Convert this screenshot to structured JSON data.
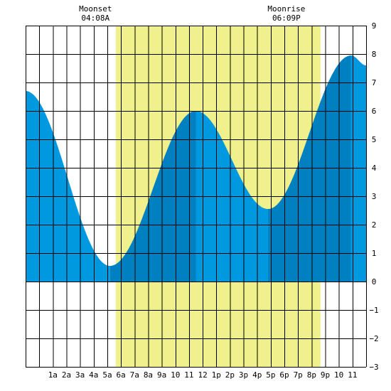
{
  "chart_data": {
    "type": "area",
    "title": "",
    "xlabel": "",
    "ylabel": "",
    "x_hours": [
      -1,
      24
    ],
    "ylim": [
      -3,
      9
    ],
    "grid": true,
    "x_tick_labels": [
      {
        "hour": 1,
        "label": "1a"
      },
      {
        "hour": 2,
        "label": "2a"
      },
      {
        "hour": 3,
        "label": "3a"
      },
      {
        "hour": 4,
        "label": "4a"
      },
      {
        "hour": 5,
        "label": "5a"
      },
      {
        "hour": 6,
        "label": "6a"
      },
      {
        "hour": 7,
        "label": "7a"
      },
      {
        "hour": 8,
        "label": "8a"
      },
      {
        "hour": 9,
        "label": "9a"
      },
      {
        "hour": 10,
        "label": "10"
      },
      {
        "hour": 11,
        "label": "11"
      },
      {
        "hour": 12,
        "label": "12"
      },
      {
        "hour": 13,
        "label": "1p"
      },
      {
        "hour": 14,
        "label": "2p"
      },
      {
        "hour": 15,
        "label": "3p"
      },
      {
        "hour": 16,
        "label": "4p"
      },
      {
        "hour": 17,
        "label": "5p"
      },
      {
        "hour": 18,
        "label": "6p"
      },
      {
        "hour": 19,
        "label": "7p"
      },
      {
        "hour": 20,
        "label": "8p"
      },
      {
        "hour": 21,
        "label": "9p"
      },
      {
        "hour": 22,
        "label": "10"
      },
      {
        "hour": 23,
        "label": "11"
      }
    ],
    "y_tick_labels": [
      "-3",
      "-2",
      "-1",
      "0",
      "1",
      "2",
      "3",
      "4",
      "5",
      "6",
      "7",
      "8",
      "9"
    ],
    "daylight": {
      "start_hour": 5.62,
      "end_hour": 20.65
    },
    "moon_events": [
      {
        "name": "Moonset",
        "time": "04:08A",
        "hour": 4.13
      },
      {
        "name": "Moonrise",
        "time": "06:09P",
        "hour": 18.15
      }
    ],
    "extremes": [
      {
        "kind": "low",
        "hour": 5.2,
        "height": 0.55
      },
      {
        "kind": "high",
        "hour": 11.5,
        "height": 6.0
      },
      {
        "kind": "low",
        "hour": 16.8,
        "height": 2.55
      },
      {
        "kind": "high",
        "hour": 22.9,
        "height": 7.95
      }
    ],
    "tide_curve": {
      "start_hour": -1,
      "start_height": 6.7,
      "end_hour": 24,
      "end_height": 7.6
    },
    "band_boundaries_hours": [
      5.2,
      11.5,
      16.8,
      22.9
    ],
    "colors": {
      "background": "#ffffff",
      "daylight": "#f0f08c",
      "tide_light": "#0099e0",
      "tide_dark": "#0080c0",
      "grid": "#000000"
    }
  }
}
